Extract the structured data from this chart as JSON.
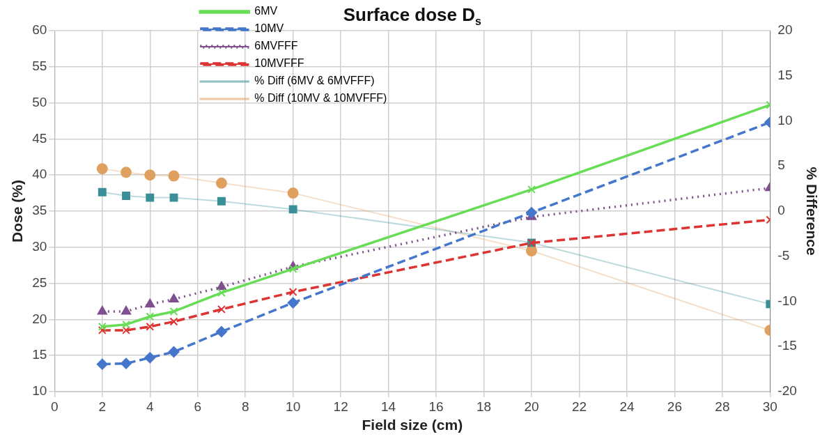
{
  "chart_data": {
    "type": "line",
    "title": "Surface dose D$_{s}$",
    "xlabel": "Field size (cm)",
    "ylabel": "Dose (%)",
    "y2label": "% Difference",
    "x": [
      2,
      3,
      4,
      5,
      7,
      10,
      20,
      30
    ],
    "xlim": [
      0,
      30
    ],
    "xticks": [
      0,
      2,
      4,
      6,
      8,
      10,
      12,
      14,
      16,
      18,
      20,
      22,
      24,
      26,
      28,
      30
    ],
    "ylim": [
      10,
      60
    ],
    "yticks": [
      10,
      15,
      20,
      25,
      30,
      35,
      40,
      45,
      50,
      55,
      60
    ],
    "y2lim": [
      -20,
      20
    ],
    "y2ticks": [
      -20,
      -15,
      -10,
      -5,
      0,
      5,
      10,
      15,
      20
    ],
    "grid": true,
    "legend": "top left",
    "series": [
      {
        "name": "6MV",
        "color": "#66dd55",
        "marker": "cross",
        "line_style": "solid",
        "values": [
          19.0,
          19.3,
          20.4,
          21.1,
          23.7,
          27.0,
          38.0,
          49.7
        ]
      },
      {
        "name": "10MV",
        "color": "#4477cc",
        "marker": "diamond",
        "line_style": "dashed",
        "values": [
          13.8,
          13.9,
          14.7,
          15.5,
          18.3,
          22.3,
          34.8,
          47.3
        ]
      },
      {
        "name": "6MVFFF",
        "color": "#7f4f8f",
        "marker": "triangle",
        "line_style": "dotted",
        "values": [
          21.1,
          21.1,
          22.1,
          22.8,
          24.5,
          27.3,
          34.2,
          38.2
        ]
      },
      {
        "name": "10MVFFF",
        "color": "#dd3333",
        "marker": "cross",
        "line_style": "dashed",
        "values": [
          18.5,
          18.5,
          19.0,
          19.7,
          21.4,
          23.8,
          30.6,
          33.8
        ]
      },
      {
        "name": "% Diff (6MV & 6MVFFF)",
        "color": "#3a8f98",
        "marker": "square",
        "line_style": "solid",
        "axis": "y2",
        "values": [
          2.1,
          1.7,
          1.5,
          1.5,
          1.1,
          0.2,
          -3.5,
          -10.3
        ]
      },
      {
        "name": "% Diff (10MV & 10MVFFF)",
        "color": "#e0a060",
        "marker": "circle",
        "line_style": "solid",
        "axis": "y2",
        "values": [
          4.7,
          4.3,
          4.0,
          3.9,
          3.1,
          2.0,
          -4.4,
          -13.2
        ]
      }
    ]
  }
}
